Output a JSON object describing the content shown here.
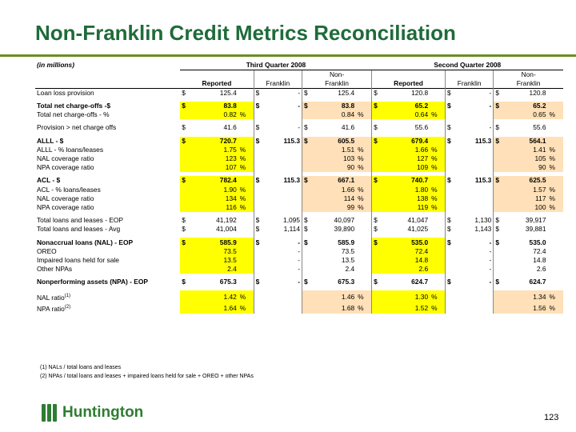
{
  "title": "Non-Franklin Credit Metrics Reconciliation",
  "units": "(in millions)",
  "periods": [
    "Third Quarter 2008",
    "Second Quarter 2008"
  ],
  "col_headers": {
    "reported": "Reported",
    "franklin": "Franklin",
    "non": "Non-",
    "non_franklin": "Franklin"
  },
  "rows": [
    {
      "label": "Loan loss provision",
      "bold": false,
      "vals": [
        "$",
        "125.4",
        "",
        "$",
        "-",
        "$",
        "125.4",
        "",
        "$",
        "120.8",
        "",
        "$",
        "-",
        "$",
        "120.8",
        ""
      ],
      "hl": [
        0,
        0,
        0
      ]
    },
    {
      "label": "Total net charge-offs -$",
      "bold": true,
      "vals": [
        "$",
        "83.8",
        "",
        "$",
        "-",
        "$",
        "83.8",
        "",
        "$",
        "65.2",
        "",
        "$",
        "-",
        "$",
        "65.2",
        ""
      ],
      "hl": [
        1,
        0,
        1
      ],
      "sep": true
    },
    {
      "label": "Total net charge-offs - %",
      "bold": false,
      "vals": [
        "",
        "0.82",
        "%",
        "",
        "",
        "",
        "0.84",
        "%",
        "",
        "0.64",
        "%",
        "",
        "",
        "",
        "0.65",
        "%"
      ],
      "hl": [
        1,
        0,
        1
      ]
    },
    {
      "label": "Provision > net charge offs",
      "bold": false,
      "vals": [
        "$",
        "41.6",
        "",
        "$",
        "-",
        "$",
        "41.6",
        "",
        "$",
        "55.6",
        "",
        "$",
        "-",
        "$",
        "55.6",
        ""
      ],
      "hl": [
        0,
        0,
        0
      ],
      "sep": true
    },
    {
      "label": "ALLL - $",
      "bold": true,
      "vals": [
        "$",
        "720.7",
        "",
        "$",
        "115.3",
        "$",
        "605.5",
        "",
        "$",
        "679.4",
        "",
        "$",
        "115.3",
        "$",
        "564.1",
        ""
      ],
      "hl": [
        1,
        0,
        1
      ],
      "sep": true
    },
    {
      "label": "ALLL - % loans/leases",
      "bold": false,
      "vals": [
        "",
        "1.75",
        "%",
        "",
        "",
        "",
        "1.51",
        "%",
        "",
        "1.66",
        "%",
        "",
        "",
        "",
        "1.41",
        "%"
      ],
      "hl": [
        1,
        0,
        1
      ]
    },
    {
      "label": "NAL coverage ratio",
      "bold": false,
      "vals": [
        "",
        "123",
        "%",
        "",
        "",
        "",
        "103",
        "%",
        "",
        "127",
        "%",
        "",
        "",
        "",
        "105",
        "%"
      ],
      "hl": [
        1,
        0,
        1
      ]
    },
    {
      "label": "NPA coverage ratio",
      "bold": false,
      "vals": [
        "",
        "107",
        "%",
        "",
        "",
        "",
        "90",
        "%",
        "",
        "109",
        "%",
        "",
        "",
        "",
        "90",
        "%"
      ],
      "hl": [
        1,
        0,
        1
      ]
    },
    {
      "label": "ACL - $",
      "bold": true,
      "vals": [
        "$",
        "782.4",
        "",
        "$",
        "115.3",
        "$",
        "667.1",
        "",
        "$",
        "740.7",
        "",
        "$",
        "115.3",
        "$",
        "625.5",
        ""
      ],
      "hl": [
        1,
        0,
        1
      ],
      "sep": true
    },
    {
      "label": "ACL - % loans/leases",
      "bold": false,
      "vals": [
        "",
        "1.90",
        "%",
        "",
        "",
        "",
        "1.66",
        "%",
        "",
        "1.80",
        "%",
        "",
        "",
        "",
        "1.57",
        "%"
      ],
      "hl": [
        1,
        0,
        1
      ]
    },
    {
      "label": "NAL coverage ratio",
      "bold": false,
      "vals": [
        "",
        "134",
        "%",
        "",
        "",
        "",
        "114",
        "%",
        "",
        "138",
        "%",
        "",
        "",
        "",
        "117",
        "%"
      ],
      "hl": [
        1,
        0,
        1
      ]
    },
    {
      "label": "NPA coverage ratio",
      "bold": false,
      "vals": [
        "",
        "116",
        "%",
        "",
        "",
        "",
        "99",
        "%",
        "",
        "119",
        "%",
        "",
        "",
        "",
        "100",
        "%"
      ],
      "hl": [
        1,
        0,
        1
      ]
    },
    {
      "label": "Total loans and leases - EOP",
      "bold": false,
      "vals": [
        "$",
        "41,192",
        "",
        "$",
        "1,095",
        "$",
        "40,097",
        "",
        "$",
        "41,047",
        "",
        "$",
        "1,130",
        "$",
        "39,917",
        ""
      ],
      "hl": [
        0,
        0,
        0
      ],
      "sep": true
    },
    {
      "label": "Total loans and leases - Avg",
      "bold": false,
      "vals": [
        "$",
        "41,004",
        "",
        "$",
        "1,114",
        "$",
        "39,890",
        "",
        "$",
        "41,025",
        "",
        "$",
        "1,143",
        "$",
        "39,881",
        ""
      ],
      "hl": [
        0,
        0,
        0
      ]
    },
    {
      "label": "Nonaccrual loans (NAL) - EOP",
      "bold": true,
      "vals": [
        "$",
        "585.9",
        "",
        "$",
        "-",
        "$",
        "585.9",
        "",
        "$",
        "535.0",
        "",
        "$",
        "-",
        "$",
        "535.0",
        ""
      ],
      "hl": [
        1,
        0,
        0
      ],
      "sep": true
    },
    {
      "label": "OREO",
      "bold": false,
      "vals": [
        "",
        "73.5",
        "",
        "",
        "-",
        "",
        "73.5",
        "",
        "",
        "72.4",
        "",
        "",
        "-",
        "",
        "72.4",
        ""
      ],
      "hl": [
        1,
        0,
        0
      ]
    },
    {
      "label": "Impaired loans held for sale",
      "bold": false,
      "vals": [
        "",
        "13.5",
        "",
        "",
        "-",
        "",
        "13.5",
        "",
        "",
        "14.8",
        "",
        "",
        "-",
        "",
        "14.8",
        ""
      ],
      "hl": [
        1,
        0,
        0
      ]
    },
    {
      "label": "Other NPAs",
      "bold": false,
      "vals": [
        "",
        "2.4",
        "",
        "",
        "-",
        "",
        "2.4",
        "",
        "",
        "2.6",
        "",
        "",
        "-",
        "",
        "2.6",
        ""
      ],
      "hl": [
        1,
        0,
        0
      ]
    },
    {
      "label": "Nonperforming assets (NPA) - EOP",
      "bold": true,
      "vals": [
        "$",
        "675.3",
        "",
        "$",
        "-",
        "$",
        "675.3",
        "",
        "$",
        "624.7",
        "",
        "$",
        "-",
        "$",
        "624.7",
        ""
      ],
      "hl": [
        0,
        0,
        0
      ],
      "sep": true
    },
    {
      "label": "NAL ratio",
      "sup": "(1)",
      "bold": false,
      "vals": [
        "",
        "1.42",
        "%",
        "",
        "",
        "",
        "1.46",
        "%",
        "",
        "1.30",
        "%",
        "",
        "",
        "",
        "1.34",
        "%"
      ],
      "hl": [
        1,
        0,
        1
      ],
      "sep": true,
      "tall": true
    },
    {
      "label": "NPA ratio",
      "sup": "(2)",
      "bold": false,
      "vals": [
        "",
        "1.64",
        "%",
        "",
        "",
        "",
        "1.68",
        "%",
        "",
        "1.52",
        "%",
        "",
        "",
        "",
        "1.56",
        "%"
      ],
      "hl": [
        1,
        0,
        1
      ]
    }
  ],
  "footnotes": [
    "(1) NALs / total loans and leases",
    "(2) NPAs / total loans and leases + impaired loans held for sale + OREO + other NPAs"
  ],
  "brand": "Huntington",
  "page_number": "123",
  "colors": {
    "title": "#1f6b3a",
    "yellow": "#ffff00",
    "peach": "#ffe0b8",
    "brand": "#2e7d32",
    "rule": "#6b8e23"
  }
}
